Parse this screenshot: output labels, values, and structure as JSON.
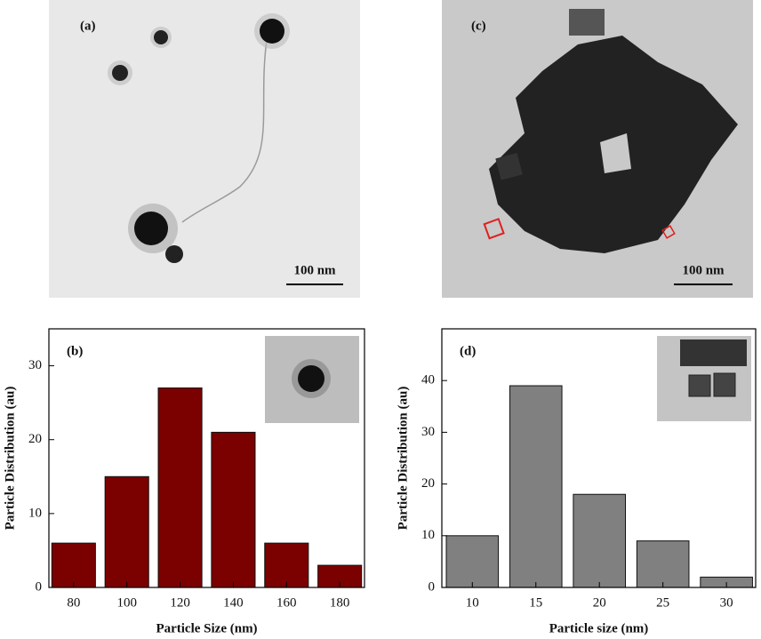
{
  "images": [
    {
      "label": "(a)",
      "scale": "100 nm"
    },
    {
      "label": "(c)",
      "scale": "100 nm"
    }
  ],
  "chart_data": [
    {
      "type": "bar",
      "label": "(b)",
      "x_label": "Particle Size (nm)",
      "y_label": "Particle Distribution (au)",
      "x": [
        80,
        100,
        120,
        140,
        160,
        180
      ],
      "values": [
        6,
        15,
        27,
        21,
        6,
        3
      ],
      "color": "#7b0000",
      "xlim": [
        70.7,
        189.3
      ],
      "xticks": [
        80,
        100,
        120,
        140,
        160,
        180
      ],
      "ylim": [
        0,
        35
      ],
      "yticks": [
        0,
        10,
        20,
        30
      ]
    },
    {
      "type": "bar",
      "label": "(d)",
      "x_label": "Particle size (nm)",
      "y_label": "Particle Distribution (au)",
      "x": [
        10,
        15,
        20,
        25,
        30
      ],
      "values": [
        10,
        39,
        18,
        9,
        2
      ],
      "color": "#808080",
      "xlim": [
        7.6,
        32.3
      ],
      "xticks": [
        10,
        15,
        20,
        25,
        30
      ],
      "ylim": [
        0,
        50
      ],
      "yticks": [
        0,
        10,
        20,
        30,
        40
      ]
    }
  ]
}
